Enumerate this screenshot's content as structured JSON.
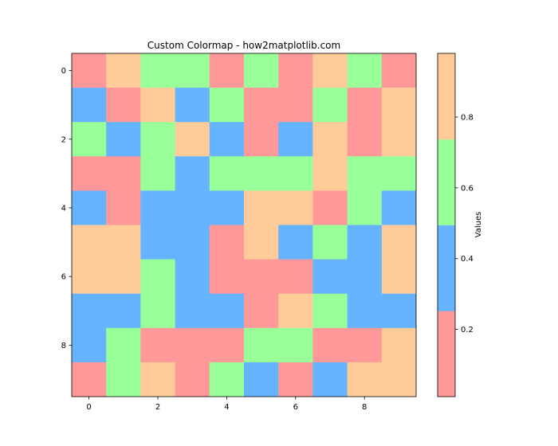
{
  "chart_data": {
    "type": "heatmap",
    "title": "Custom Colormap - how2matplotlib.com",
    "x_ticks": [
      0,
      2,
      4,
      6,
      8
    ],
    "y_ticks": [
      0,
      2,
      4,
      6,
      8
    ],
    "x_range": [
      -0.5,
      9.5
    ],
    "y_range": [
      9.5,
      -0.5
    ],
    "grid": false,
    "colors": {
      "red": "#ff9999",
      "blue": "#66b3ff",
      "green": "#99ff99",
      "orange": "#ffcc99"
    },
    "cells": [
      [
        "red",
        "orange",
        "green",
        "green",
        "red",
        "green",
        "red",
        "orange",
        "green",
        "red"
      ],
      [
        "blue",
        "red",
        "orange",
        "blue",
        "green",
        "red",
        "red",
        "green",
        "red",
        "orange"
      ],
      [
        "green",
        "blue",
        "green",
        "orange",
        "blue",
        "red",
        "blue",
        "orange",
        "red",
        "orange"
      ],
      [
        "red",
        "red",
        "green",
        "blue",
        "green",
        "green",
        "green",
        "orange",
        "green",
        "green"
      ],
      [
        "blue",
        "red",
        "blue",
        "blue",
        "blue",
        "orange",
        "orange",
        "red",
        "green",
        "blue"
      ],
      [
        "orange",
        "orange",
        "blue",
        "blue",
        "red",
        "orange",
        "blue",
        "green",
        "blue",
        "orange"
      ],
      [
        "orange",
        "orange",
        "green",
        "blue",
        "red",
        "red",
        "red",
        "blue",
        "blue",
        "orange"
      ],
      [
        "blue",
        "blue",
        "green",
        "blue",
        "blue",
        "red",
        "orange",
        "green",
        "blue",
        "blue"
      ],
      [
        "blue",
        "green",
        "red",
        "red",
        "red",
        "green",
        "green",
        "red",
        "red",
        "orange"
      ],
      [
        "red",
        "green",
        "orange",
        "red",
        "green",
        "blue",
        "red",
        "blue",
        "orange",
        "orange"
      ]
    ],
    "colorbar": {
      "label": "Values",
      "vmin": 0.01,
      "vmax": 0.98,
      "ticks": [
        0.2,
        0.4,
        0.6,
        0.8
      ],
      "tick_labels": [
        "0.2",
        "0.4",
        "0.6",
        "0.8"
      ],
      "bands": [
        "red",
        "blue",
        "green",
        "orange"
      ]
    }
  }
}
